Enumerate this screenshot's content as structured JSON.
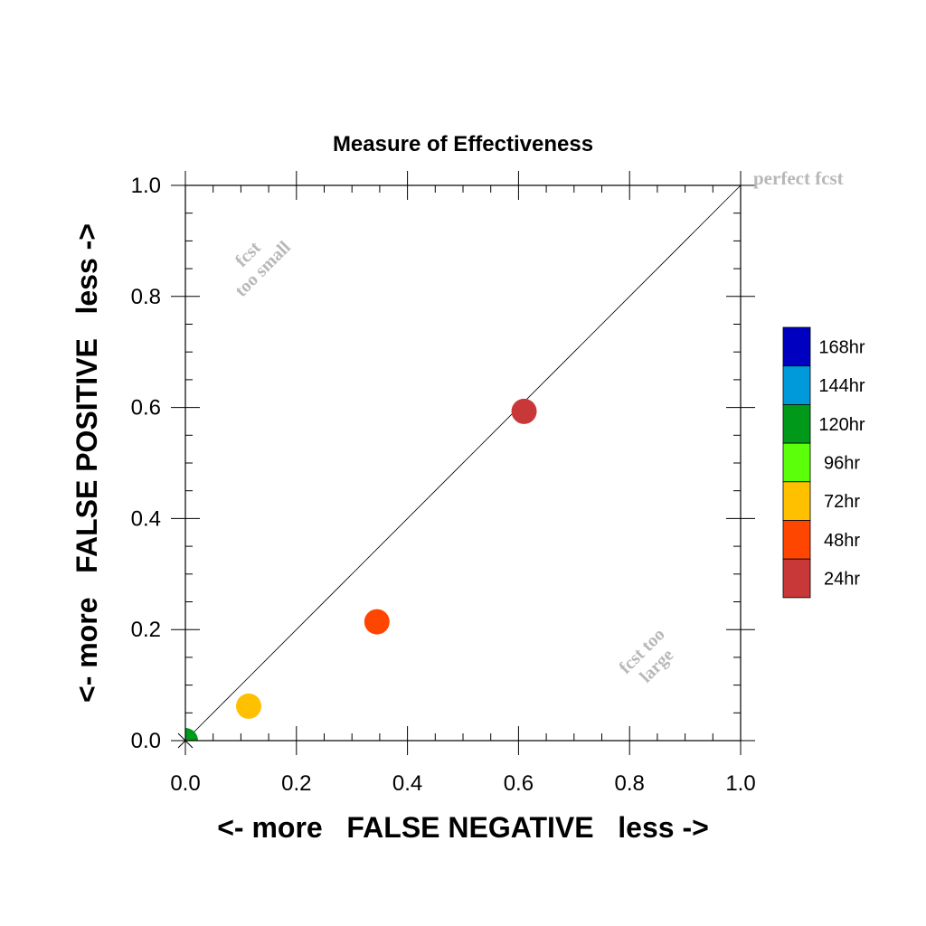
{
  "chart_data": {
    "type": "scatter",
    "title": "Measure of Effectiveness",
    "xlabel": "<- more   FALSE NEGATIVE   less ->",
    "ylabel": "<- more   FALSE POSITIVE   less ->",
    "xlim": [
      0.0,
      1.0
    ],
    "ylim": [
      0.0,
      1.0
    ],
    "xticks": [
      "0.0",
      "0.2",
      "0.4",
      "0.6",
      "0.8",
      "1.0"
    ],
    "yticks": [
      "0.0",
      "0.2",
      "0.4",
      "0.6",
      "0.8",
      "1.0"
    ],
    "reference_line": "diagonal",
    "annotations": {
      "perfect": "perfect fcst",
      "too_small_1": "fcst",
      "too_small_2": "too small",
      "too_large_1": "fcst too",
      "too_large_2": "large"
    },
    "legend": [
      {
        "label": "168hr",
        "color": "#0000c0"
      },
      {
        "label": "144hr",
        "color": "#0099d9"
      },
      {
        "label": "120hr",
        "color": "#009919"
      },
      {
        "label": "96hr",
        "color": "#5cff0a"
      },
      {
        "label": "72hr",
        "color": "#ffc000"
      },
      {
        "label": "48hr",
        "color": "#ff4600"
      },
      {
        "label": "24hr",
        "color": "#c83838"
      }
    ],
    "points": [
      {
        "series": "24hr",
        "x": 0.61,
        "y": 0.593,
        "color": "#c83838"
      },
      {
        "series": "48hr",
        "x": 0.345,
        "y": 0.214,
        "color": "#ff4600"
      },
      {
        "series": "72hr",
        "x": 0.114,
        "y": 0.062,
        "color": "#ffc000"
      },
      {
        "series": "120hr",
        "x": 0.0,
        "y": 0.0,
        "color": "#009919"
      }
    ]
  }
}
